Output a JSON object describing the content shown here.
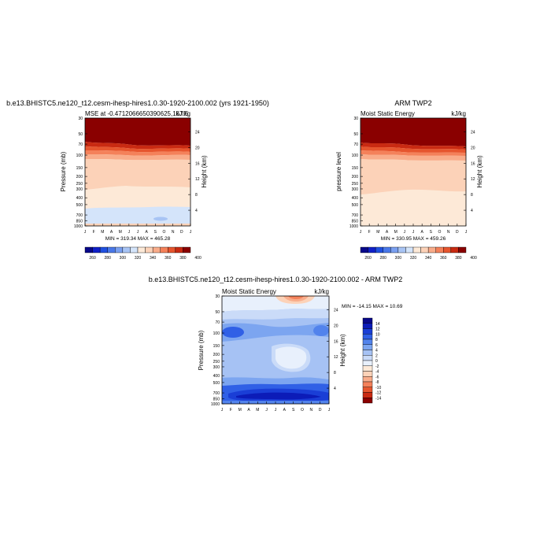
{
  "chart_data": [
    {
      "type": "heatmap",
      "title": "b.e13.BHISTC5.ne120_t12.cesm-ihesp-hires1.0.30-1920-2100.002 (yrs 1921-1950)",
      "left_label": "MSE at -0.4712066650390625,167.5",
      "right_label": "kJ/kg",
      "ylabel": "Pressure (mb)",
      "ylabel_right": "Height (km)",
      "stats": "MIN = 319.34 MAX = 465.28",
      "x": [
        "J",
        "F",
        "M",
        "A",
        "M",
        "J",
        "J",
        "A",
        "S",
        "O",
        "N",
        "D",
        "J"
      ],
      "y_ticks": [
        "30",
        "50",
        "70",
        "100",
        "150",
        "200",
        "250",
        "300",
        "400",
        "500",
        "700",
        "850",
        "1000"
      ],
      "y_ticks_right": [
        "24",
        "20",
        "16",
        "12",
        "8",
        "4"
      ],
      "colorbar_ticks": [
        "260",
        "280",
        "300",
        "320",
        "340",
        "360",
        "380",
        "400"
      ]
    },
    {
      "type": "heatmap",
      "title": "ARM TWP2",
      "left_label": "Moist Static Energy",
      "right_label": "kJ/kg",
      "ylabel": "pressure level",
      "ylabel_right": "Height (km)",
      "stats": "MIN = 330.95 MAX = 459.26",
      "x": [
        "J",
        "F",
        "M",
        "A",
        "M",
        "J",
        "J",
        "A",
        "S",
        "O",
        "N",
        "D",
        "J"
      ],
      "y_ticks": [
        "30",
        "50",
        "70",
        "100",
        "150",
        "200",
        "250",
        "300",
        "400",
        "500",
        "700",
        "850",
        "1000"
      ],
      "y_ticks_right": [
        "24",
        "20",
        "16",
        "12",
        "8",
        "4"
      ],
      "colorbar_ticks": [
        "260",
        "280",
        "300",
        "320",
        "340",
        "360",
        "380",
        "400"
      ]
    },
    {
      "type": "heatmap",
      "title": "b.e13.BHISTC5.ne120_t12.cesm-ihesp-hires1.0.30-1920-2100.002 - ARM TWP2",
      "left_label": "Moist Static Energy",
      "right_label": "kJ/kg",
      "ylabel": "Pressure (mb)",
      "ylabel_right": "Height (km)",
      "stats": "MIN = -14.15 MAX =  10.69",
      "x": [
        "J",
        "F",
        "M",
        "A",
        "M",
        "J",
        "J",
        "A",
        "S",
        "O",
        "N",
        "D",
        "J"
      ],
      "y_ticks": [
        "30",
        "50",
        "70",
        "100",
        "150",
        "200",
        "250",
        "300",
        "400",
        "500",
        "700",
        "850",
        "1000"
      ],
      "y_ticks_right": [
        "24",
        "20",
        "16",
        "12",
        "8",
        "4"
      ],
      "colorbar_ticks": [
        "14",
        "12",
        "10",
        "8",
        "6",
        "4",
        "2",
        "0",
        "-2",
        "-4",
        "-6",
        "-8",
        "-10",
        "-12",
        "-14"
      ]
    }
  ],
  "colors": {
    "mse_palette": [
      "#08088a",
      "#1020c8",
      "#2050e0",
      "#4a78e8",
      "#7aa0f0",
      "#a8c4f4",
      "#d4e4fa",
      "#fde9d7",
      "#fcd2b8",
      "#f9ac8a",
      "#f4815a",
      "#e6552e",
      "#c92a12",
      "#8a0000"
    ],
    "diff_palette": [
      "#08088a",
      "#0c1cb8",
      "#1a3ed6",
      "#3060e6",
      "#5283ec",
      "#7ca5f0",
      "#a6c2f4",
      "#cadbf8",
      "#e8f0fc",
      "#fde9d7",
      "#fcd2b8",
      "#f9ac8a",
      "#f4815a",
      "#e6552e",
      "#c92a12",
      "#8a0000"
    ]
  }
}
